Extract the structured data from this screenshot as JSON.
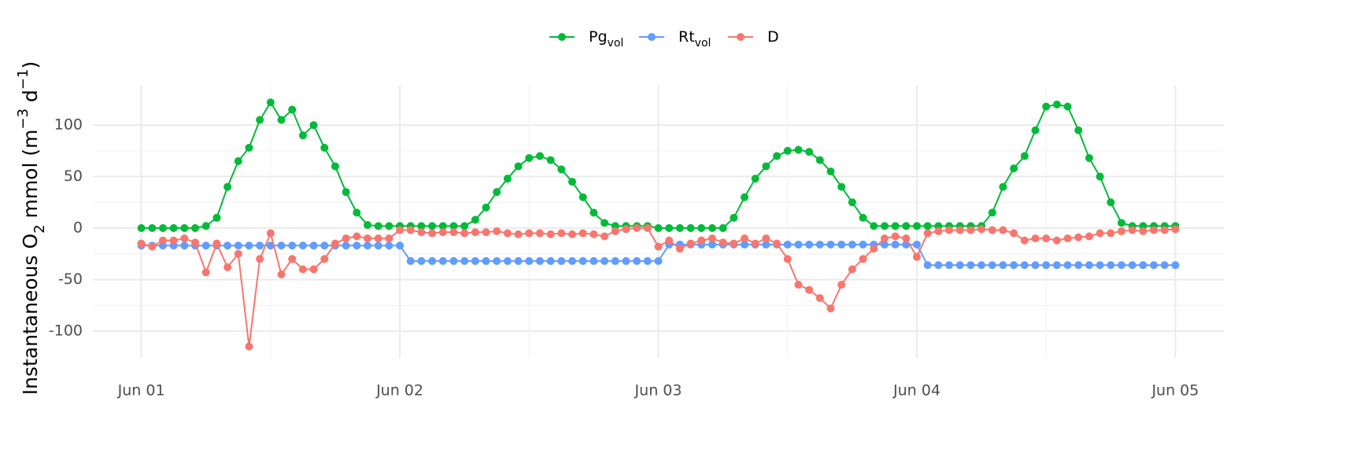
{
  "chart_data": {
    "type": "line",
    "ylabel": [
      {
        "text": "Instantaneous O",
        "shift": null
      },
      {
        "text": "2",
        "shift": "sub"
      },
      {
        "text": " mmol (m",
        "shift": null
      },
      {
        "text": "−3",
        "shift": "sup"
      },
      {
        "text": " d",
        "shift": null
      },
      {
        "text": "−1",
        "shift": "sup"
      },
      {
        "text": ")",
        "shift": null
      }
    ],
    "x": [
      0,
      1,
      2,
      3,
      4,
      5,
      6,
      7,
      8,
      9,
      10,
      11,
      12,
      13,
      14,
      15,
      16,
      17,
      18,
      19,
      20,
      21,
      22,
      23,
      24,
      25,
      26,
      27,
      28,
      29,
      30,
      31,
      32,
      33,
      34,
      35,
      36,
      37,
      38,
      39,
      40,
      41,
      42,
      43,
      44,
      45,
      46,
      47,
      48,
      49,
      50,
      51,
      52,
      53,
      54,
      55,
      56,
      57,
      58,
      59,
      60,
      61,
      62,
      63,
      64,
      65,
      66,
      67,
      68,
      69,
      70,
      71,
      72,
      73,
      74,
      75,
      76,
      77,
      78,
      79,
      80,
      81,
      82,
      83,
      84,
      85,
      86,
      87,
      88,
      89,
      90,
      91,
      92,
      93,
      94,
      95,
      96
    ],
    "series": [
      {
        "name": "Pg",
        "name_subscript": "vol",
        "color": "#00ba38",
        "values": [
          0,
          0,
          0,
          0,
          0,
          0,
          2,
          10,
          40,
          65,
          78,
          105,
          122,
          105,
          115,
          90,
          100,
          78,
          60,
          35,
          15,
          3,
          2,
          2,
          2,
          2,
          2,
          2,
          2,
          2,
          2,
          8,
          20,
          35,
          48,
          60,
          68,
          70,
          66,
          57,
          45,
          30,
          15,
          5,
          2,
          2,
          2,
          2,
          0,
          0,
          0,
          0,
          0,
          0,
          0,
          10,
          30,
          48,
          60,
          70,
          75,
          76,
          74,
          66,
          55,
          40,
          25,
          10,
          2,
          2,
          2,
          2,
          2,
          2,
          2,
          2,
          2,
          2,
          2,
          15,
          40,
          58,
          70,
          95,
          118,
          120,
          118,
          95,
          68,
          50,
          25,
          5,
          2,
          2,
          2,
          2,
          2
        ]
      },
      {
        "name": "Rt",
        "name_subscript": "vol",
        "color": "#619cff",
        "values": [
          -17,
          -17,
          -17,
          -17,
          -17,
          -17,
          -17,
          -17,
          -17,
          -17,
          -17,
          -17,
          -17,
          -17,
          -17,
          -17,
          -17,
          -17,
          -17,
          -17,
          -17,
          -17,
          -17,
          -17,
          -17,
          -32,
          -32,
          -32,
          -32,
          -32,
          -32,
          -32,
          -32,
          -32,
          -32,
          -32,
          -32,
          -32,
          -32,
          -32,
          -32,
          -32,
          -32,
          -32,
          -32,
          -32,
          -32,
          -32,
          -32,
          -16,
          -16,
          -16,
          -16,
          -16,
          -16,
          -16,
          -16,
          -16,
          -16,
          -16,
          -16,
          -16,
          -16,
          -16,
          -16,
          -16,
          -16,
          -16,
          -16,
          -16,
          -16,
          -16,
          -16,
          -36,
          -36,
          -36,
          -36,
          -36,
          -36,
          -36,
          -36,
          -36,
          -36,
          -36,
          -36,
          -36,
          -36,
          -36,
          -36,
          -36,
          -36,
          -36,
          -36,
          -36,
          -36,
          -36,
          -36
        ]
      },
      {
        "name": "D",
        "color": "#f8766d",
        "values": [
          -15,
          -18,
          -12,
          -12,
          -10,
          -14,
          -43,
          -15,
          -38,
          -25,
          -115,
          -30,
          -5,
          -45,
          -30,
          -40,
          -40,
          -30,
          -15,
          -10,
          -8,
          -10,
          -10,
          -10,
          -2,
          -2,
          -4,
          -5,
          -4,
          -4,
          -5,
          -4,
          -4,
          -3,
          -5,
          -6,
          -5,
          -5,
          -6,
          -5,
          -6,
          -5,
          -6,
          -8,
          -3,
          -1,
          0,
          0,
          -18,
          -12,
          -20,
          -15,
          -12,
          -10,
          -14,
          -15,
          -10,
          -15,
          -10,
          -15,
          -30,
          -55,
          -60,
          -68,
          -78,
          -55,
          -40,
          -30,
          -20,
          -10,
          -8,
          -10,
          -28,
          -5,
          -3,
          -2,
          -2,
          -2,
          -1,
          -2,
          -2,
          -5,
          -12,
          -10,
          -10,
          -12,
          -10,
          -9,
          -8,
          -5,
          -5,
          -3,
          -2,
          -3,
          -2,
          -2,
          -1
        ]
      }
    ],
    "xlim": [
      -4.5,
      100.5
    ],
    "xticks": [
      {
        "value": 0,
        "label": "Jun 01"
      },
      {
        "value": 24,
        "label": "Jun 02"
      },
      {
        "value": 48,
        "label": "Jun 03"
      },
      {
        "value": 72,
        "label": "Jun 04"
      },
      {
        "value": 96,
        "label": "Jun 05"
      }
    ],
    "ylim": [
      -126,
      139
    ],
    "yticks": [
      -100,
      -50,
      0,
      50,
      100
    ],
    "grid": true,
    "legend": "top"
  }
}
